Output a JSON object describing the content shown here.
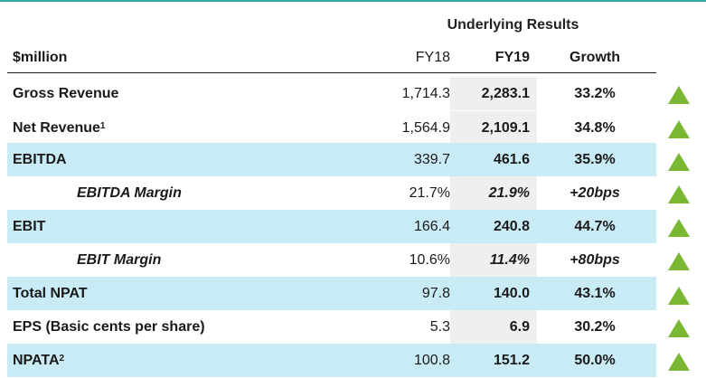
{
  "super_header": "Underlying Results",
  "columns": {
    "label": "$million",
    "fy18": "FY18",
    "fy19": "FY19",
    "growth": "Growth"
  },
  "rows": [
    {
      "label": "Gross Revenue",
      "sup": "",
      "fy18": "1,714.3",
      "fy19": "2,283.1",
      "growth": "33.2%"
    },
    {
      "label": "Net Revenue",
      "sup": "1",
      "fy18": "1,564.9",
      "fy19": "2,109.1",
      "growth": "34.8%"
    },
    {
      "label": "EBITDA",
      "sup": "",
      "fy18": "339.7",
      "fy19": "461.6",
      "growth": "35.9%"
    },
    {
      "label": "EBITDA Margin",
      "sup": "",
      "fy18": "21.7%",
      "fy19": "21.9%",
      "growth": "+20bps"
    },
    {
      "label": "EBIT",
      "sup": "",
      "fy18": "166.4",
      "fy19": "240.8",
      "growth": "44.7%"
    },
    {
      "label": "EBIT Margin",
      "sup": "",
      "fy18": "10.6%",
      "fy19": "11.4%",
      "growth": "+80bps"
    },
    {
      "label": "Total NPAT",
      "sup": "",
      "fy18": "97.8",
      "fy19": "140.0",
      "growth": "43.1%"
    },
    {
      "label": "EPS (Basic cents per share)",
      "sup": "",
      "fy18": "5.3",
      "fy19": "6.9",
      "growth": "30.2%"
    },
    {
      "label": "NPATA",
      "sup": "2",
      "fy18": "100.8",
      "fy19": "151.2",
      "growth": "50.0%"
    }
  ],
  "colors": {
    "row_highlight": "#c9ebf6",
    "fy19_column": "#efefef",
    "arrow": "#7ab833",
    "top_rule": "#2eaaa2"
  },
  "icons": {
    "growth": "up-arrow-icon"
  }
}
